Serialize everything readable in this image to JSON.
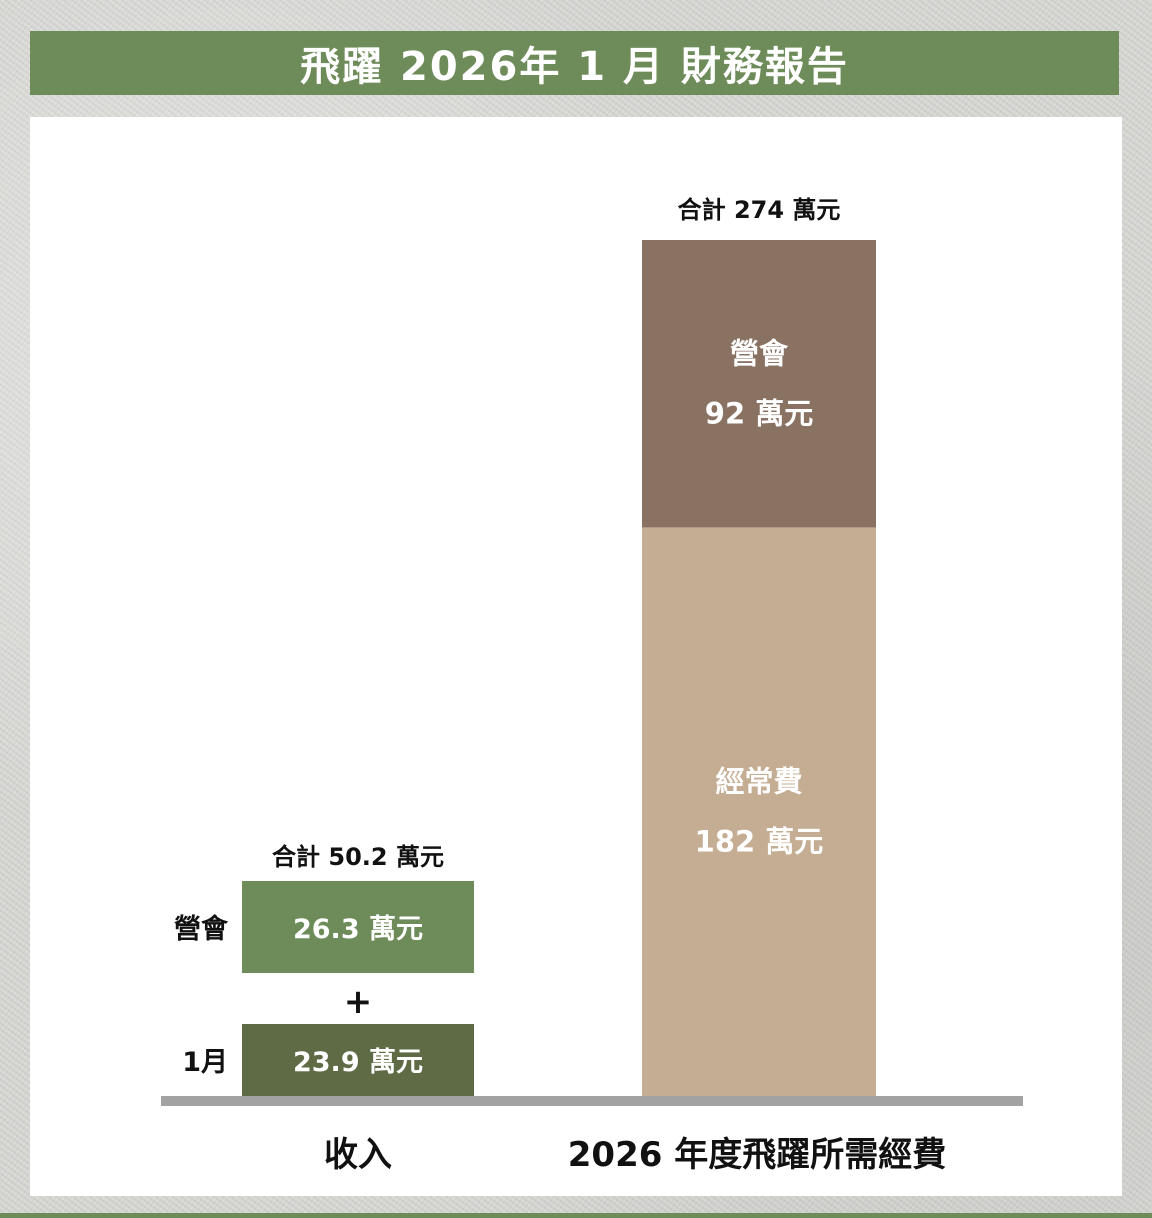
{
  "title": "飛躍 2026年 1 月 財務報告",
  "chart_data": {
    "type": "bar",
    "unit": "萬元",
    "categories": [
      "收入",
      "2026 年度飛躍所需經費"
    ],
    "income": {
      "label": "收入",
      "total": 50.2,
      "total_text": "合計 50.2 萬元",
      "plus_sign": "+",
      "items": [
        {
          "name": "營會",
          "value": 26.3,
          "text": "26.3 萬元",
          "color": "#6e8b5a"
        },
        {
          "name": "1月",
          "value": 23.9,
          "text": "23.9 萬元",
          "color": "#5e6b45"
        }
      ]
    },
    "expense": {
      "label": "2026 年度飛躍所需經費",
      "total": 274,
      "total_text": "合計 274 萬元",
      "segments": [
        {
          "name": "經常費",
          "value": 182,
          "text": "182 萬元",
          "color": "#c4ad93"
        },
        {
          "name": "營會",
          "value": 92,
          "text": "92 萬元",
          "color": "#8a7263"
        }
      ]
    }
  }
}
